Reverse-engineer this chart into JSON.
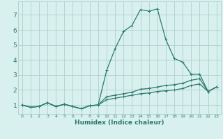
{
  "xlabel": "Humidex (Indice chaleur)",
  "x": [
    0,
    1,
    2,
    3,
    4,
    5,
    6,
    7,
    8,
    9,
    10,
    11,
    12,
    13,
    14,
    15,
    16,
    17,
    18,
    19,
    20,
    21,
    22,
    23
  ],
  "line_max": [
    1.0,
    0.85,
    0.9,
    1.15,
    0.9,
    1.05,
    0.9,
    0.75,
    0.95,
    1.0,
    3.3,
    4.75,
    5.9,
    6.3,
    7.35,
    7.25,
    7.4,
    5.35,
    4.1,
    3.85,
    3.05,
    3.05,
    1.9,
    2.2
  ],
  "line_mean": [
    1.0,
    0.85,
    0.9,
    1.15,
    0.9,
    1.05,
    0.9,
    0.75,
    0.95,
    1.0,
    1.55,
    1.65,
    1.75,
    1.85,
    2.05,
    2.1,
    2.2,
    2.3,
    2.35,
    2.45,
    2.65,
    2.75,
    1.9,
    2.2
  ],
  "line_min": [
    1.0,
    0.85,
    0.9,
    1.15,
    0.9,
    1.05,
    0.9,
    0.75,
    0.95,
    1.0,
    1.35,
    1.45,
    1.55,
    1.65,
    1.75,
    1.8,
    1.9,
    1.95,
    2.0,
    2.1,
    2.3,
    2.4,
    1.9,
    2.2
  ],
  "line_color": "#2d7a6e",
  "bg_color": "#d8f0ee",
  "grid_color": "#aed0cc",
  "ylim": [
    0.4,
    7.9
  ],
  "xlim": [
    -0.5,
    23.5
  ],
  "yticks": [
    1,
    2,
    3,
    4,
    5,
    6,
    7
  ],
  "xticks": [
    0,
    1,
    2,
    3,
    4,
    5,
    6,
    7,
    8,
    9,
    10,
    11,
    12,
    13,
    14,
    15,
    16,
    17,
    18,
    19,
    20,
    21,
    22,
    23
  ]
}
